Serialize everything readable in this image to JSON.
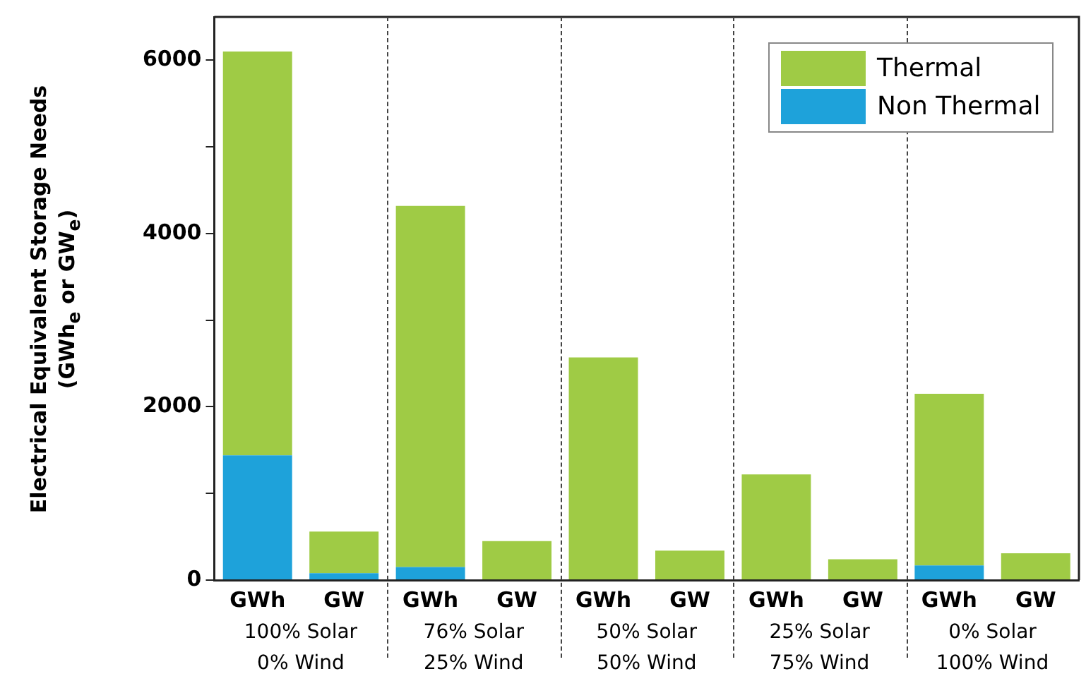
{
  "chart_data": {
    "type": "bar",
    "stacked": true,
    "ylabel": "Electrical Equivalent Storage Needs\n(GWh$_{e}$ or GW$_{e}$)",
    "categories": [
      "GWh",
      "GW",
      "GWh",
      "GW",
      "GWh",
      "GW",
      "GWh",
      "GW",
      "GWh",
      "GW"
    ],
    "series": [
      {
        "name": "Non Thermal",
        "color": "#1ea2da",
        "values": [
          1440,
          80,
          150,
          null,
          null,
          null,
          null,
          null,
          170,
          null
        ]
      },
      {
        "name": "Thermal",
        "color": "#9fcb45",
        "values": [
          4660,
          480,
          4170,
          450,
          2570,
          340,
          1220,
          240,
          1980,
          310
        ]
      }
    ],
    "ylim": [
      0,
      6500
    ],
    "yticks": [
      0,
      {
        "value": 1000,
        "label": null
      },
      2000,
      {
        "value": 3000,
        "label": null
      },
      4000,
      {
        "value": 5000,
        "label": null
      },
      6000
    ],
    "grid": false,
    "legend": "top right",
    "annotations": [
      "100% Solar\n0% Wind",
      "76% Solar\n25% Wind",
      "50% Solar\n50% Wind",
      "25% Solar\n75% Wind",
      "0% Solar\n100% Wind"
    ]
  }
}
